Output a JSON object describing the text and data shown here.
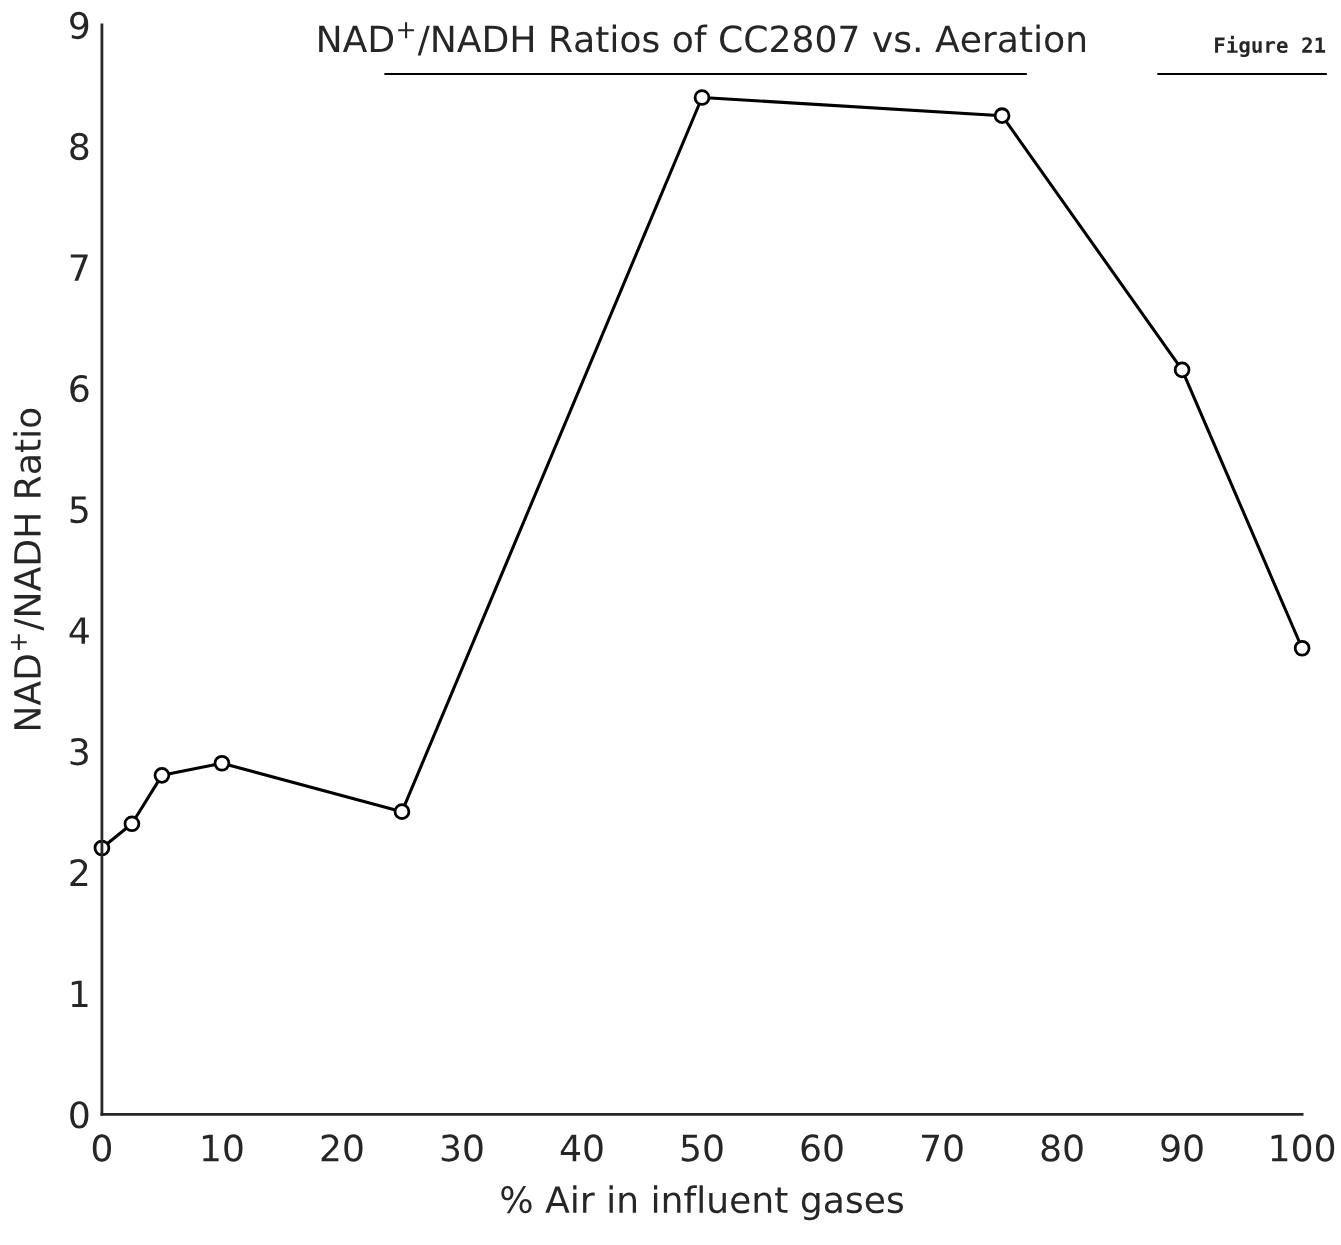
{
  "chart_data": {
    "type": "line",
    "title": "NAD$^{+}$/NADH Ratios of CC2807 vs. Aeration",
    "xlabel": "% Air in influent gases",
    "ylabel": "NAD$^{+}$/NADH Ratio",
    "annotations": [
      "Figure 21"
    ],
    "x": [
      0,
      2.5,
      5,
      10,
      25,
      50,
      75,
      90,
      100
    ],
    "series": [
      {
        "color": "#000000",
        "values": [
          2.2,
          2.4,
          2.8,
          2.9,
          2.5,
          8.4,
          8.25,
          6.15,
          3.85
        ]
      }
    ],
    "xlim": [
      0,
      100
    ],
    "ylim": [
      0,
      9
    ],
    "xticks": [
      0,
      10,
      20,
      30,
      40,
      50,
      60,
      70,
      80,
      90,
      100
    ],
    "yticks": [
      0,
      1,
      2,
      3,
      4,
      5,
      6,
      7,
      8,
      9
    ],
    "grid": false,
    "legend": false,
    "marker": "circle",
    "line_style": "solid"
  }
}
